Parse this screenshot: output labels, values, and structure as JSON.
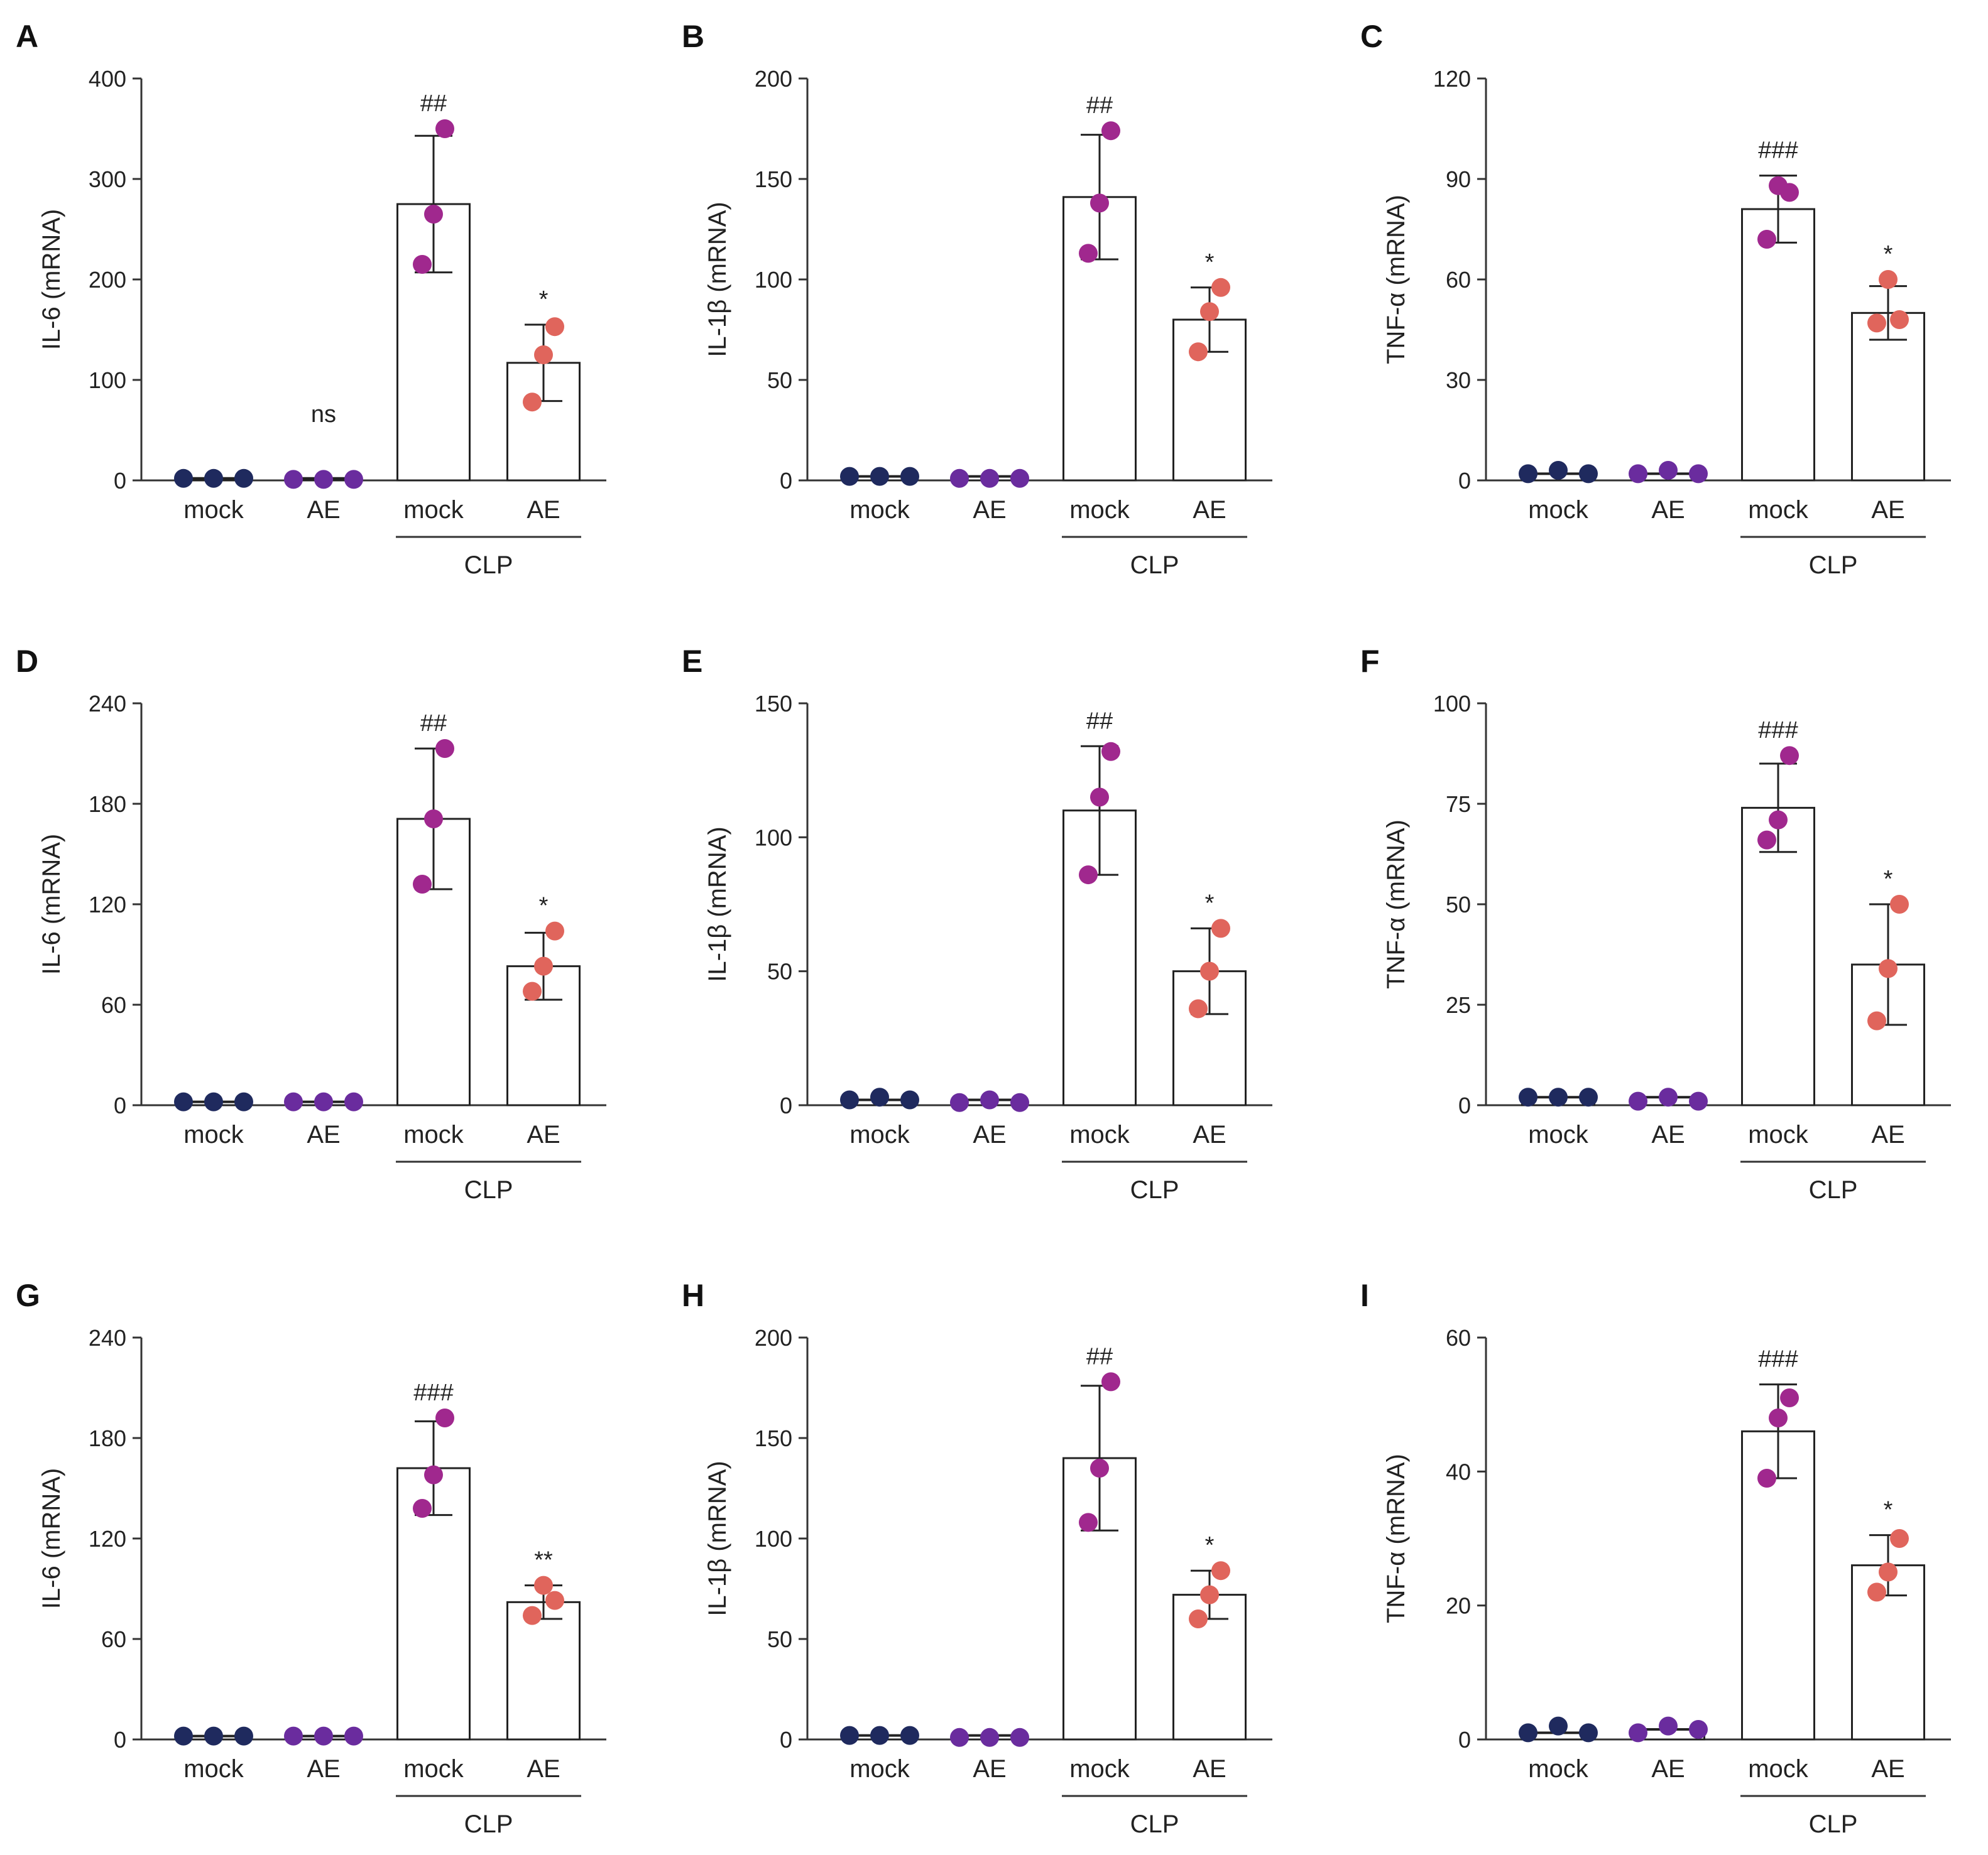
{
  "colors": {
    "mock_dot": "#1f2a5e",
    "ae_dot": "#6a2c9e",
    "clp_mock_dot": "#a0288e",
    "clp_ae_dot": "#e0655c",
    "axis": "#333333",
    "bar_edge": "#222222"
  },
  "chart_data": [
    {
      "panel": "A",
      "type": "bar",
      "ylabel": "IL-6  (mRNA)",
      "ylim": [
        0,
        400
      ],
      "yticks": [
        0,
        100,
        200,
        300,
        400
      ],
      "categories": [
        "mock",
        "AE",
        "mock",
        "AE"
      ],
      "group_label": "CLP",
      "values": [
        2,
        2,
        275,
        117
      ],
      "errors": [
        null,
        null,
        68,
        38
      ],
      "points": [
        [
          2,
          2,
          2
        ],
        [
          1,
          1,
          1
        ],
        [
          215,
          265,
          350
        ],
        [
          78,
          125,
          153
        ]
      ],
      "annotations": [
        "",
        "ns",
        "##",
        "*"
      ]
    },
    {
      "panel": "B",
      "type": "bar",
      "ylabel": "IL-1β  (mRNA)",
      "ylim": [
        0,
        200
      ],
      "yticks": [
        0,
        50,
        100,
        150,
        200
      ],
      "categories": [
        "mock",
        "AE",
        "mock",
        "AE"
      ],
      "group_label": "CLP",
      "values": [
        2,
        2,
        141,
        80
      ],
      "errors": [
        null,
        null,
        31,
        16
      ],
      "points": [
        [
          2,
          2,
          2
        ],
        [
          1,
          1,
          1
        ],
        [
          113,
          138,
          174
        ],
        [
          64,
          84,
          96
        ]
      ],
      "annotations": [
        "",
        "",
        "##",
        "*"
      ]
    },
    {
      "panel": "C",
      "type": "bar",
      "ylabel": "TNF-α  (mRNA)",
      "ylim": [
        0,
        120
      ],
      "yticks": [
        0,
        30,
        60,
        90,
        120
      ],
      "categories": [
        "mock",
        "AE",
        "mock",
        "AE"
      ],
      "group_label": "CLP",
      "values": [
        2,
        2,
        81,
        50
      ],
      "errors": [
        null,
        null,
        10,
        8
      ],
      "points": [
        [
          2,
          3,
          2
        ],
        [
          2,
          3,
          2
        ],
        [
          72,
          88,
          86
        ],
        [
          47,
          60,
          48
        ]
      ],
      "annotations": [
        "",
        "",
        "###",
        "*"
      ]
    },
    {
      "panel": "D",
      "type": "bar",
      "ylabel": "IL-6  (mRNA)",
      "ylim": [
        0,
        240
      ],
      "yticks": [
        0,
        60,
        120,
        180,
        240
      ],
      "categories": [
        "mock",
        "AE",
        "mock",
        "AE"
      ],
      "group_label": "CLP",
      "values": [
        2,
        2,
        171,
        83
      ],
      "errors": [
        null,
        null,
        42,
        20
      ],
      "points": [
        [
          2,
          2,
          2
        ],
        [
          2,
          2,
          2
        ],
        [
          132,
          171,
          213
        ],
        [
          68,
          83,
          104
        ]
      ],
      "annotations": [
        "",
        "",
        "##",
        "*"
      ]
    },
    {
      "panel": "E",
      "type": "bar",
      "ylabel": "IL-1β  (mRNA)",
      "ylim": [
        0,
        150
      ],
      "yticks": [
        0,
        50,
        100,
        150
      ],
      "categories": [
        "mock",
        "AE",
        "mock",
        "AE"
      ],
      "group_label": "CLP",
      "values": [
        2,
        2,
        110,
        50
      ],
      "errors": [
        null,
        null,
        24,
        16
      ],
      "points": [
        [
          2,
          3,
          2
        ],
        [
          1,
          2,
          1
        ],
        [
          86,
          115,
          132
        ],
        [
          36,
          50,
          66
        ]
      ],
      "annotations": [
        "",
        "",
        "##",
        "*"
      ]
    },
    {
      "panel": "F",
      "type": "bar",
      "ylabel": "TNF-α  (mRNA)",
      "ylim": [
        0,
        100
      ],
      "yticks": [
        0,
        25,
        50,
        75,
        100
      ],
      "categories": [
        "mock",
        "AE",
        "mock",
        "AE"
      ],
      "group_label": "CLP",
      "values": [
        2,
        2,
        74,
        35
      ],
      "errors": [
        null,
        null,
        11,
        15
      ],
      "points": [
        [
          2,
          2,
          2
        ],
        [
          1,
          2,
          1
        ],
        [
          66,
          71,
          87
        ],
        [
          21,
          34,
          50
        ]
      ],
      "annotations": [
        "",
        "",
        "###",
        "*"
      ]
    },
    {
      "panel": "G",
      "type": "bar",
      "ylabel": "IL-6  (mRNA)",
      "ylim": [
        0,
        240
      ],
      "yticks": [
        0,
        60,
        120,
        180,
        240
      ],
      "categories": [
        "mock",
        "AE",
        "mock",
        "AE"
      ],
      "group_label": "CLP",
      "values": [
        2,
        2,
        162,
        82
      ],
      "errors": [
        null,
        null,
        28,
        10
      ],
      "points": [
        [
          2,
          2,
          2
        ],
        [
          2,
          2,
          2
        ],
        [
          138,
          158,
          192
        ],
        [
          74,
          92,
          83
        ]
      ],
      "annotations": [
        "",
        "",
        "###",
        "**"
      ]
    },
    {
      "panel": "H",
      "type": "bar",
      "ylabel": "IL-1β  (mRNA)",
      "ylim": [
        0,
        200
      ],
      "yticks": [
        0,
        50,
        100,
        150,
        200
      ],
      "categories": [
        "mock",
        "AE",
        "mock",
        "AE"
      ],
      "group_label": "CLP",
      "values": [
        2,
        2,
        140,
        72
      ],
      "errors": [
        null,
        null,
        36,
        12
      ],
      "points": [
        [
          2,
          2,
          2
        ],
        [
          1,
          1,
          1
        ],
        [
          108,
          135,
          178
        ],
        [
          60,
          72,
          84
        ]
      ],
      "annotations": [
        "",
        "",
        "##",
        "*"
      ]
    },
    {
      "panel": "I",
      "type": "bar",
      "ylabel": "TNF-α  (mRNA)",
      "ylim": [
        0,
        60
      ],
      "yticks": [
        0,
        20,
        40,
        60
      ],
      "categories": [
        "mock",
        "AE",
        "mock",
        "AE"
      ],
      "group_label": "CLP",
      "values": [
        1,
        1.5,
        46,
        26
      ],
      "errors": [
        null,
        null,
        7,
        4.5
      ],
      "points": [
        [
          1,
          2,
          1
        ],
        [
          1,
          2,
          1.5
        ],
        [
          39,
          48,
          51
        ],
        [
          22,
          25,
          30
        ]
      ],
      "annotations": [
        "",
        "",
        "###",
        "*"
      ]
    }
  ]
}
